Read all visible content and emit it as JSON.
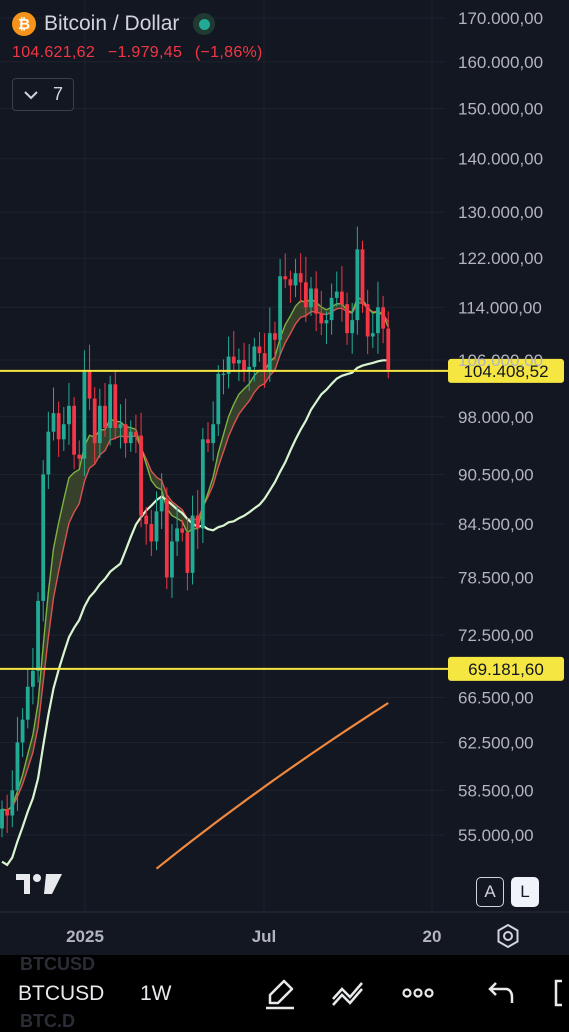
{
  "header": {
    "title": "Bitcoin / Dollar",
    "last_price": "104.621,62",
    "change": "−1.979,45",
    "change_pct": "(−1,86%)",
    "indicator_count": "7",
    "colors": {
      "down": "#f23645",
      "up": "#22ab94",
      "live": "#22ab94",
      "btc": "#f7931a"
    }
  },
  "chart_data": {
    "type": "candlestick",
    "timeframe": "1W",
    "price_axis_labels": [
      "170.000,00",
      "160.000,00",
      "150.000,00",
      "140.000,00",
      "130.000,00",
      "122.000,00",
      "114.000,00",
      "106.000,00",
      "98.000,00",
      "90.500,00",
      "84.500,00",
      "78.500,00",
      "72.500,00",
      "66.500,00",
      "62.500,00",
      "58.500,00",
      "55.000,00"
    ],
    "time_axis_labels": [
      "2025",
      "Jul",
      "20"
    ],
    "horizontal_lines": [
      {
        "price": 104408.52,
        "label": "104.408,52",
        "color": "#f5e642"
      },
      {
        "price": 69181.6,
        "label": "69.181,60",
        "color": "#f5e642"
      }
    ],
    "log_scale": true,
    "grid": true
  },
  "scale_buttons": {
    "auto": "A",
    "log": "L"
  },
  "bottom": {
    "symbol": "BTCUSD",
    "timeframe": "1W",
    "ghost_top": "BTCUSD",
    "ghost_bottom": "BTC.D"
  }
}
